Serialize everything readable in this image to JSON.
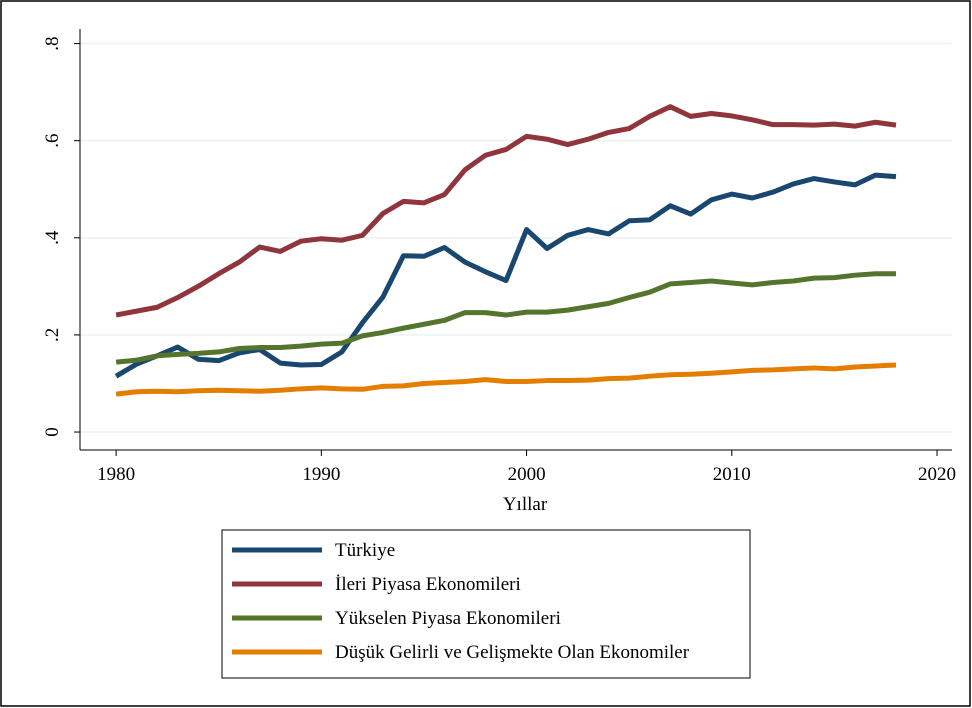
{
  "chart_data": {
    "type": "line",
    "xlabel": "Yıllar",
    "x": [
      1980,
      1981,
      1982,
      1983,
      1984,
      1985,
      1986,
      1987,
      1988,
      1989,
      1990,
      1991,
      1992,
      1993,
      1994,
      1995,
      1996,
      1997,
      1998,
      1999,
      2000,
      2001,
      2002,
      2003,
      2004,
      2005,
      2006,
      2007,
      2008,
      2009,
      2010,
      2011,
      2012,
      2013,
      2014,
      2015,
      2016,
      2017,
      2018
    ],
    "series": [
      {
        "name": "Türkiye",
        "color": "#1a476f",
        "values": [
          0.115,
          0.14,
          0.157,
          0.175,
          0.15,
          0.147,
          0.163,
          0.17,
          0.142,
          0.138,
          0.139,
          0.165,
          0.225,
          0.278,
          0.363,
          0.362,
          0.38,
          0.35,
          0.33,
          0.312,
          0.417,
          0.378,
          0.405,
          0.417,
          0.408,
          0.435,
          0.437,
          0.466,
          0.449,
          0.478,
          0.49,
          0.482,
          0.494,
          0.511,
          0.522,
          0.515,
          0.509,
          0.529,
          0.526
        ]
      },
      {
        "name": "İleri Piyasa Ekonomileri",
        "color": "#90353b",
        "values": [
          0.241,
          0.249,
          0.257,
          0.277,
          0.3,
          0.326,
          0.35,
          0.381,
          0.372,
          0.393,
          0.398,
          0.395,
          0.405,
          0.45,
          0.475,
          0.472,
          0.489,
          0.54,
          0.57,
          0.582,
          0.609,
          0.603,
          0.592,
          0.603,
          0.617,
          0.625,
          0.65,
          0.67,
          0.65,
          0.656,
          0.651,
          0.643,
          0.633,
          0.633,
          0.632,
          0.634,
          0.63,
          0.638,
          0.632
        ]
      },
      {
        "name": "Yükselen Piyasa Ekonomileri",
        "color": "#55752f",
        "values": [
          0.144,
          0.148,
          0.157,
          0.16,
          0.162,
          0.165,
          0.172,
          0.174,
          0.174,
          0.177,
          0.181,
          0.183,
          0.198,
          0.205,
          0.214,
          0.222,
          0.23,
          0.246,
          0.246,
          0.241,
          0.247,
          0.247,
          0.251,
          0.258,
          0.265,
          0.277,
          0.288,
          0.305,
          0.308,
          0.311,
          0.307,
          0.303,
          0.308,
          0.311,
          0.317,
          0.318,
          0.323,
          0.326,
          0.326
        ]
      },
      {
        "name": "Düşük Gelirli ve Gelişmekte Olan Ekonomiler",
        "color": "#e37e00",
        "values": [
          0.078,
          0.083,
          0.084,
          0.083,
          0.085,
          0.086,
          0.085,
          0.084,
          0.086,
          0.089,
          0.091,
          0.089,
          0.088,
          0.094,
          0.095,
          0.1,
          0.102,
          0.104,
          0.108,
          0.104,
          0.104,
          0.106,
          0.106,
          0.107,
          0.11,
          0.111,
          0.115,
          0.118,
          0.119,
          0.121,
          0.124,
          0.127,
          0.128,
          0.13,
          0.132,
          0.13,
          0.134,
          0.136,
          0.138
        ]
      }
    ],
    "xlim": [
      1978.24,
      2020.73
    ],
    "xticks": [
      1980,
      1990,
      2000,
      2010,
      2020
    ],
    "ylim": [
      -0.037,
      0.83
    ],
    "yticks": [
      0,
      {
        "value": 0.2,
        "label": ".2"
      },
      {
        "value": 0.4,
        "label": ".4"
      },
      {
        "value": 0.6,
        "label": ".6"
      },
      {
        "value": 0.8,
        "label": ".8"
      }
    ],
    "grid": true
  }
}
